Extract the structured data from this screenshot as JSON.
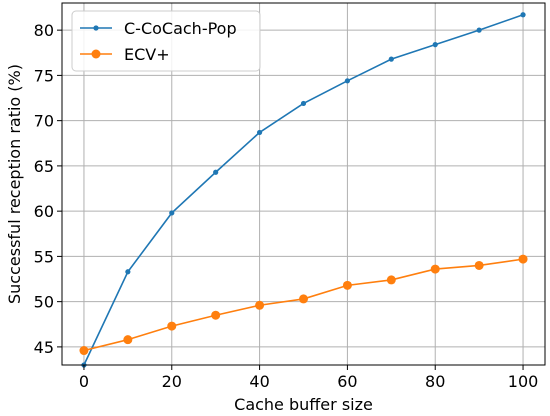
{
  "chart_data": {
    "type": "line",
    "xlabel": "Cache buffer size",
    "ylabel": "Successful reception ratio (%)",
    "xlim": [
      -5,
      105
    ],
    "ylim": [
      43,
      83
    ],
    "xticks": [
      0,
      20,
      40,
      60,
      80,
      100
    ],
    "yticks": [
      45,
      50,
      55,
      60,
      65,
      70,
      75,
      80
    ],
    "grid": true,
    "legend_position": "top-left",
    "series": [
      {
        "name": "C-CoCach-Pop",
        "color": "#1f77b4",
        "marker": "small-dot",
        "x": [
          0,
          10,
          20,
          30,
          40,
          50,
          60,
          70,
          80,
          90,
          100
        ],
        "y": [
          43.0,
          53.3,
          59.8,
          64.3,
          68.7,
          71.9,
          74.4,
          76.8,
          78.4,
          80.0,
          81.7
        ]
      },
      {
        "name": "ECV+",
        "color": "#ff7f0e",
        "marker": "large-dot",
        "x": [
          0,
          10,
          20,
          30,
          40,
          50,
          60,
          70,
          80,
          90,
          100
        ],
        "y": [
          44.6,
          45.8,
          47.3,
          48.5,
          49.6,
          50.3,
          51.8,
          52.4,
          53.6,
          54.0,
          54.7
        ]
      }
    ]
  }
}
